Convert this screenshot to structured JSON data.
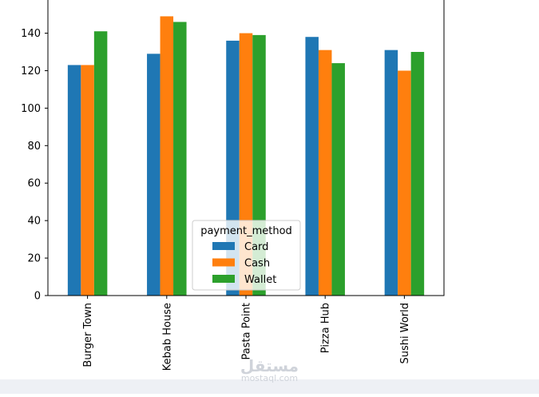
{
  "chart_data": {
    "type": "bar",
    "categories": [
      "Burger Town",
      "Kebab House",
      "Pasta Point",
      "Pizza Hub",
      "Sushi World"
    ],
    "series": [
      {
        "name": "Card",
        "values": [
          123,
          129,
          136,
          138,
          131
        ],
        "color": "#1f77b4"
      },
      {
        "name": "Cash",
        "values": [
          123,
          149,
          140,
          131,
          120
        ],
        "color": "#ff7f0e"
      },
      {
        "name": "Wallet",
        "values": [
          141,
          146,
          139,
          124,
          130
        ],
        "color": "#2ca02c"
      }
    ],
    "yticks": [
      0,
      20,
      40,
      60,
      80,
      100,
      120,
      140
    ],
    "ylim": [
      0,
      156
    ],
    "legend_title": "payment_method",
    "legend_placement": "lower-center",
    "grid": false
  },
  "watermark": {
    "logo": "مستقل",
    "domain": "mostaql.com"
  }
}
